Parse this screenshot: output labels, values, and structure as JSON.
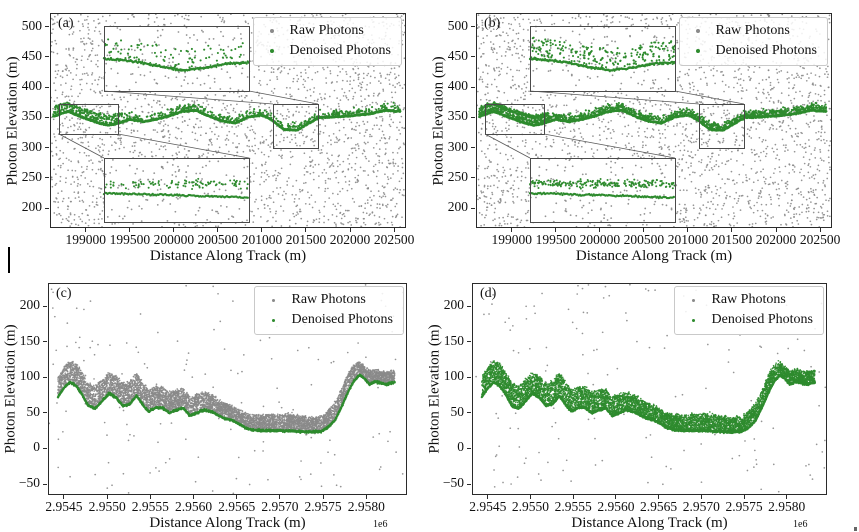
{
  "figure": {
    "background": "#ffffff",
    "panel_count": 4
  },
  "colors": {
    "raw_photons": "#8a8a8a",
    "denoised_photons": "#2e8b2e",
    "axis": "#2b2b2b",
    "text": "#111111",
    "legend_border": "#c9c9c9"
  },
  "chart_data": [
    {
      "id": "a",
      "panel_label": "(a)",
      "type": "scatter",
      "xlabel": "Distance Along Track (m)",
      "ylabel": "Photon Elevation (m)",
      "x_offset_label": "",
      "xlim": [
        198605,
        202624
      ],
      "ylim": [
        169,
        521
      ],
      "xticks": {
        "values": [
          199000,
          199500,
          200000,
          200500,
          201000,
          201500,
          202000,
          202500
        ],
        "labels": [
          "199000",
          "199500",
          "200000",
          "200500",
          "201000",
          "201500",
          "202000",
          "202500"
        ]
      },
      "yticks": {
        "values": [
          200,
          250,
          300,
          350,
          400,
          450,
          500
        ],
        "labels": [
          "200",
          "250",
          "300",
          "350",
          "400",
          "450",
          "500"
        ]
      },
      "legend": [
        "Raw Photons",
        "Denoised Photons"
      ],
      "legend_position": "upper right",
      "grid": false,
      "seed": 11,
      "raw_noise_count": 2600,
      "denoised": {
        "ground_profile": {
          "x": [
            198630,
            198800,
            198950,
            199100,
            199250,
            199350,
            199500,
            199650,
            199800,
            199950,
            200100,
            200250,
            200400,
            200550,
            200700,
            200850,
            201000,
            201100,
            201250,
            201400,
            201500,
            201650,
            201800,
            201950,
            202100,
            202250,
            202400,
            202570
          ],
          "y": [
            352,
            360,
            351,
            343,
            337,
            340,
            347,
            343,
            347,
            353,
            360,
            362,
            352,
            344,
            341,
            351,
            354,
            347,
            330,
            329,
            338,
            350,
            351,
            352,
            354,
            357,
            362,
            360
          ]
        },
        "canopy_scatter_count": 420,
        "left_canopy_band": {
          "x_range": [
            198650,
            199420
          ],
          "offset_m": 13,
          "count": 130
        }
      },
      "insets": {
        "top": {
          "x": 53,
          "y": 12,
          "w": 145,
          "h": 65,
          "noise": 120,
          "green_scatter": 85,
          "line": [
            [
              0,
              0.5
            ],
            [
              0.1,
              0.52
            ],
            [
              0.25,
              0.56
            ],
            [
              0.4,
              0.63
            ],
            [
              0.55,
              0.68
            ],
            [
              0.7,
              0.64
            ],
            [
              0.85,
              0.58
            ],
            [
              1,
              0.56
            ]
          ]
        },
        "bottom": {
          "x": 53,
          "y": 144,
          "w": 145,
          "h": 64,
          "noise": 115,
          "upper_band_y": 0.4,
          "upper_count": 100,
          "line": [
            [
              0,
              0.55
            ],
            [
              0.5,
              0.58
            ],
            [
              1,
              0.62
            ]
          ]
        },
        "left_rect": {
          "x": 8,
          "y": 90,
          "w": 59,
          "h": 30
        },
        "right_rect": {
          "x": 222,
          "y": 90,
          "w": 45,
          "h": 44
        },
        "connectors": [
          [
            [
              53,
              77
            ],
            [
              222,
              90
            ]
          ],
          [
            [
              198,
              77
            ],
            [
              267,
              90
            ]
          ],
          [
            [
              8,
              120
            ],
            [
              53,
              144
            ]
          ],
          [
            [
              67,
              120
            ],
            [
              198,
              144
            ]
          ]
        ]
      }
    },
    {
      "id": "b",
      "panel_label": "(b)",
      "type": "scatter",
      "xlabel": "Distance Along Track (m)",
      "ylabel": "Photon Elevation (m)",
      "x_offset_label": "",
      "xlim": [
        198605,
        202624
      ],
      "ylim": [
        169,
        521
      ],
      "xticks": {
        "values": [
          199000,
          199500,
          200000,
          200500,
          201000,
          201500,
          202000,
          202500
        ],
        "labels": [
          "199000",
          "199500",
          "200000",
          "200500",
          "201000",
          "201500",
          "202000",
          "202500"
        ]
      },
      "yticks": {
        "values": [
          200,
          250,
          300,
          350,
          400,
          450,
          500
        ],
        "labels": [
          "200",
          "250",
          "300",
          "350",
          "400",
          "450",
          "500"
        ]
      },
      "legend": [
        "Raw Photons",
        "Denoised Photons"
      ],
      "legend_position": "upper right",
      "grid": false,
      "seed": 23,
      "raw_noise_count": 2600,
      "denoised": {
        "ground_profile": {
          "x": [
            198630,
            198800,
            198950,
            199100,
            199250,
            199350,
            199500,
            199650,
            199800,
            199950,
            200100,
            200250,
            200400,
            200550,
            200700,
            200850,
            201000,
            201100,
            201250,
            201400,
            201500,
            201650,
            201800,
            201950,
            202100,
            202250,
            202400,
            202570
          ],
          "y": [
            352,
            360,
            351,
            343,
            337,
            340,
            347,
            343,
            347,
            353,
            360,
            362,
            352,
            344,
            341,
            351,
            354,
            347,
            330,
            329,
            338,
            350,
            351,
            352,
            354,
            357,
            362,
            360
          ]
        },
        "canopy_scatter_count": 950,
        "left_canopy_band": {
          "x_range": [
            198650,
            199420
          ],
          "offset_m": 13,
          "count": 300
        }
      },
      "insets": {
        "top": {
          "x": 53,
          "y": 12,
          "w": 145,
          "h": 65,
          "noise": 120,
          "green_scatter": 210,
          "line": [
            [
              0,
              0.5
            ],
            [
              0.1,
              0.52
            ],
            [
              0.25,
              0.56
            ],
            [
              0.4,
              0.63
            ],
            [
              0.55,
              0.68
            ],
            [
              0.7,
              0.64
            ],
            [
              0.85,
              0.58
            ],
            [
              1,
              0.56
            ]
          ]
        },
        "bottom": {
          "x": 53,
          "y": 144,
          "w": 145,
          "h": 64,
          "noise": 115,
          "upper_band_y": 0.4,
          "upper_count": 220,
          "line": [
            [
              0,
              0.55
            ],
            [
              0.5,
              0.58
            ],
            [
              1,
              0.62
            ]
          ]
        },
        "left_rect": {
          "x": 8,
          "y": 90,
          "w": 59,
          "h": 30
        },
        "right_rect": {
          "x": 222,
          "y": 90,
          "w": 45,
          "h": 44
        },
        "connectors": [
          [
            [
              53,
              77
            ],
            [
              222,
              90
            ]
          ],
          [
            [
              198,
              77
            ],
            [
              267,
              90
            ]
          ],
          [
            [
              8,
              120
            ],
            [
              53,
              144
            ]
          ],
          [
            [
              67,
              120
            ],
            [
              198,
              144
            ]
          ]
        ]
      }
    },
    {
      "id": "c",
      "panel_label": "(c)",
      "type": "scatter",
      "xlabel": "Distance Along Track (m)",
      "ylabel": "Photon Elevation (m)",
      "x_offset_label": "1e6",
      "xlim": [
        2954327,
        2958460
      ],
      "ylim": [
        -64,
        231
      ],
      "xticks": {
        "values": [
          2954500,
          2955000,
          2955500,
          2956000,
          2956500,
          2957000,
          2957500,
          2958000
        ],
        "labels": [
          "2.9545",
          "2.9550",
          "2.9555",
          "2.9560",
          "2.9565",
          "2.9570",
          "2.9575",
          "2.9580"
        ]
      },
      "yticks": {
        "values": [
          -50,
          0,
          50,
          100,
          150,
          200
        ],
        "labels": [
          "−50",
          "0",
          "50",
          "100",
          "150",
          "200"
        ]
      },
      "legend": [
        "Raw Photons",
        "Denoised Photons"
      ],
      "legend_position": "upper right",
      "grid": false,
      "seed": 37,
      "raw_noise_count": 170,
      "band": {
        "color_role": "raw_photons",
        "count": 6800,
        "profile": {
          "x": [
            2954430,
            2954500,
            2954570,
            2954640,
            2954700,
            2954780,
            2954860,
            2954940,
            2955020,
            2955100,
            2955180,
            2955260,
            2955340,
            2955420,
            2955480,
            2955560,
            2955640,
            2955720,
            2955800,
            2955880,
            2955960,
            2956040,
            2956120,
            2956200,
            2956280,
            2956360,
            2956440,
            2956520,
            2956600,
            2956680,
            2956800,
            2957000,
            2957200,
            2957350,
            2957480,
            2957560,
            2957640,
            2957720,
            2957800,
            2957860,
            2957920,
            2957980,
            2958040,
            2958100,
            2958160,
            2958230,
            2958330
          ],
          "y": [
            72,
            85,
            93,
            88,
            78,
            60,
            56,
            66,
            77,
            72,
            60,
            62,
            74,
            60,
            52,
            57,
            57,
            50,
            54,
            57,
            46,
            50,
            54,
            52,
            47,
            42,
            40,
            35,
            29,
            26,
            25,
            25,
            24,
            23,
            24,
            30,
            40,
            60,
            82,
            95,
            103,
            98,
            90,
            94,
            92,
            90,
            93
          ]
        },
        "spread": {
          "x": [
            2954430,
            2954700,
            2955000,
            2955300,
            2955600,
            2955900,
            2956200,
            2956500,
            2956800,
            2957100,
            2957400,
            2957600,
            2957800,
            2957950,
            2958330
          ],
          "s": [
            28,
            32,
            30,
            32,
            30,
            27,
            24,
            20,
            22,
            24,
            20,
            24,
            26,
            18,
            17
          ]
        }
      },
      "ground": {
        "color_role": "denoised_photons",
        "count": 1700
      }
    },
    {
      "id": "d",
      "panel_label": "(d)",
      "type": "scatter",
      "xlabel": "Distance Along Track (m)",
      "ylabel": "Photon Elevation (m)",
      "x_offset_label": "1e6",
      "xlim": [
        2954327,
        2958460
      ],
      "ylim": [
        -64,
        231
      ],
      "xticks": {
        "values": [
          2954500,
          2955000,
          2955500,
          2956000,
          2956500,
          2957000,
          2957500,
          2958000
        ],
        "labels": [
          "2.9545",
          "2.9550",
          "2.9555",
          "2.9560",
          "2.9565",
          "2.9570",
          "2.9575",
          "2.9580"
        ]
      },
      "yticks": {
        "values": [
          -50,
          0,
          50,
          100,
          150,
          200
        ],
        "labels": [
          "−50",
          "0",
          "50",
          "100",
          "150",
          "200"
        ]
      },
      "legend": [
        "Raw Photons",
        "Denoised Photons"
      ],
      "legend_position": "upper right",
      "grid": false,
      "seed": 53,
      "raw_noise_count": 170,
      "band": {
        "color_role": "denoised_photons",
        "count": 6800,
        "profile": {
          "x": [
            2954430,
            2954500,
            2954570,
            2954640,
            2954700,
            2954780,
            2954860,
            2954940,
            2955020,
            2955100,
            2955180,
            2955260,
            2955340,
            2955420,
            2955480,
            2955560,
            2955640,
            2955720,
            2955800,
            2955880,
            2955960,
            2956040,
            2956120,
            2956200,
            2956280,
            2956360,
            2956440,
            2956520,
            2956600,
            2956680,
            2956800,
            2957000,
            2957200,
            2957350,
            2957480,
            2957560,
            2957640,
            2957720,
            2957800,
            2957860,
            2957920,
            2957980,
            2958040,
            2958100,
            2958160,
            2958230,
            2958330
          ],
          "y": [
            72,
            85,
            93,
            88,
            78,
            60,
            56,
            66,
            77,
            72,
            60,
            62,
            74,
            60,
            52,
            57,
            57,
            50,
            54,
            57,
            46,
            50,
            54,
            52,
            47,
            42,
            40,
            35,
            29,
            26,
            25,
            25,
            24,
            23,
            24,
            30,
            40,
            60,
            82,
            95,
            103,
            98,
            90,
            94,
            92,
            90,
            93
          ]
        },
        "spread": {
          "x": [
            2954430,
            2954700,
            2955000,
            2955300,
            2955600,
            2955900,
            2956200,
            2956500,
            2956800,
            2957100,
            2957400,
            2957600,
            2957800,
            2957950,
            2958330
          ],
          "s": [
            28,
            32,
            30,
            32,
            30,
            27,
            24,
            20,
            22,
            24,
            20,
            24,
            26,
            18,
            17
          ]
        }
      },
      "ground": {
        "color_role": "denoised_photons",
        "count": 1700
      }
    }
  ]
}
